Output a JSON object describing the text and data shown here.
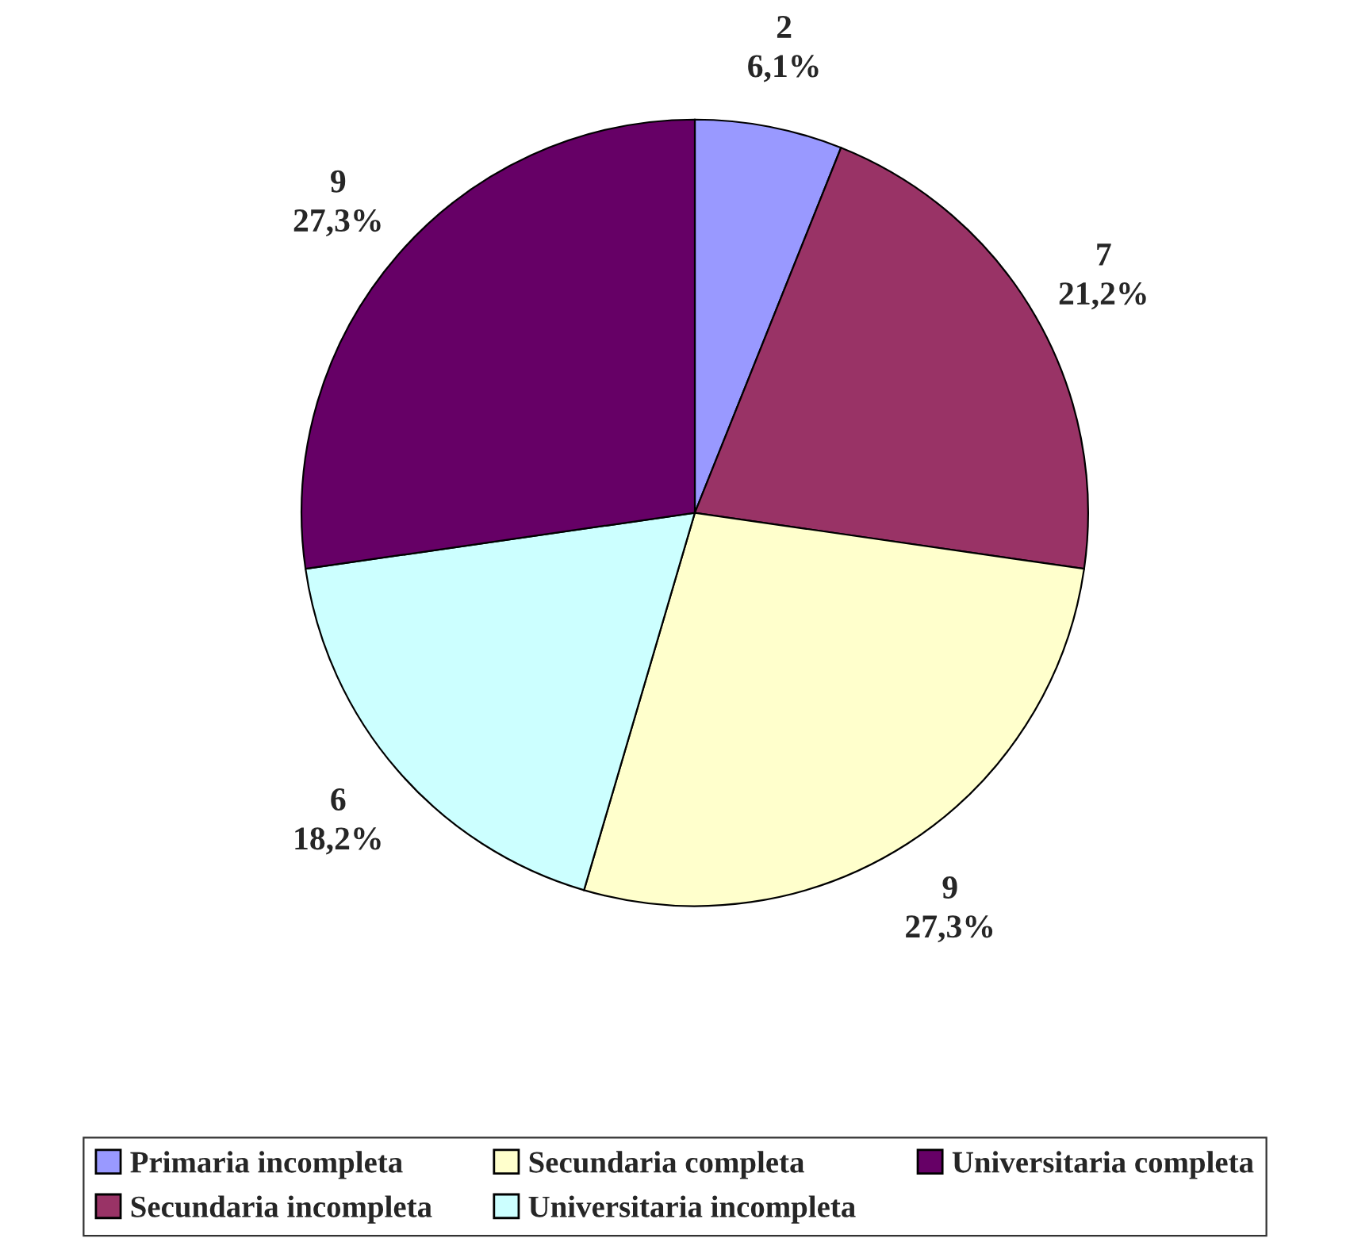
{
  "chart_data": {
    "type": "pie",
    "categories": [
      "Primaria incompleta",
      "Secundaria incompleta",
      "Secundaria completa",
      "Universitaria incompleta",
      "Universitaria completa"
    ],
    "values": [
      2,
      7,
      9,
      6,
      9
    ],
    "colors": [
      "#9999ff",
      "#993366",
      "#ffffcc",
      "#ccffff",
      "#660066"
    ],
    "value_labels": [
      "2\n6,1%",
      "7\n21,2%",
      "9\n27,3%",
      "6\n18,2%",
      "9\n27,3%"
    ],
    "legend": "bottom"
  }
}
